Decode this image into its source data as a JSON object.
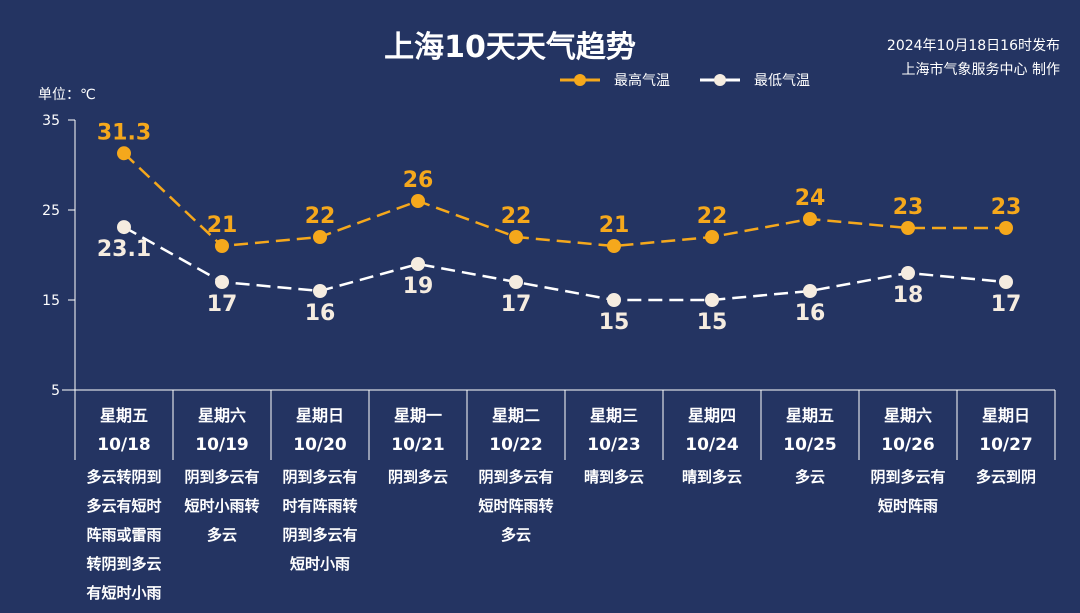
{
  "header": {
    "title": "上海10天天气趋势",
    "publish_time": "2024年10月18日16时发布",
    "producer": "上海市气象服务中心 制作",
    "unit": "单位：℃"
  },
  "colors": {
    "background": "#243462",
    "high": "#f5a81c",
    "low": "#f5ece0"
  },
  "chart_data": {
    "type": "line",
    "title": "上海10天天气趋势",
    "ylabel": "单位：℃",
    "ylim": [
      5,
      35
    ],
    "yticks": [
      "5",
      "15",
      "25",
      "35"
    ],
    "legend_position": "top-right",
    "categories": [
      {
        "weekday": "星期五",
        "date": "10/18"
      },
      {
        "weekday": "星期六",
        "date": "10/19"
      },
      {
        "weekday": "星期日",
        "date": "10/20"
      },
      {
        "weekday": "星期一",
        "date": "10/21"
      },
      {
        "weekday": "星期二",
        "date": "10/22"
      },
      {
        "weekday": "星期三",
        "date": "10/23"
      },
      {
        "weekday": "星期四",
        "date": "10/24"
      },
      {
        "weekday": "星期五",
        "date": "10/25"
      },
      {
        "weekday": "星期六",
        "date": "10/26"
      },
      {
        "weekday": "星期日",
        "date": "10/27"
      }
    ],
    "series": [
      {
        "name": "最高气温",
        "values": [
          31.3,
          21,
          22,
          26,
          22,
          21,
          22,
          24,
          23,
          23
        ],
        "labels": [
          "31.3",
          "21",
          "22",
          "26",
          "22",
          "21",
          "22",
          "24",
          "23",
          "23"
        ]
      },
      {
        "name": "最低气温",
        "values": [
          23.1,
          17,
          16,
          19,
          17,
          15,
          15,
          16,
          18,
          17
        ],
        "labels": [
          "23.1",
          "17",
          "16",
          "19",
          "17",
          "15",
          "15",
          "16",
          "18",
          "17"
        ]
      }
    ],
    "weather": [
      [
        "多云转阴到",
        "多云有短时",
        "阵雨或雷雨",
        "转阴到多云",
        "有短时小雨"
      ],
      [
        "阴到多云有",
        "短时小雨转",
        "多云"
      ],
      [
        "阴到多云有",
        "时有阵雨转",
        "阴到多云有",
        "短时小雨"
      ],
      [
        "阴到多云"
      ],
      [
        "阴到多云有",
        "短时阵雨转",
        "多云"
      ],
      [
        "晴到多云"
      ],
      [
        "晴到多云"
      ],
      [
        "多云"
      ],
      [
        "阴到多云有",
        "短时阵雨"
      ],
      [
        "多云到阴"
      ]
    ]
  }
}
